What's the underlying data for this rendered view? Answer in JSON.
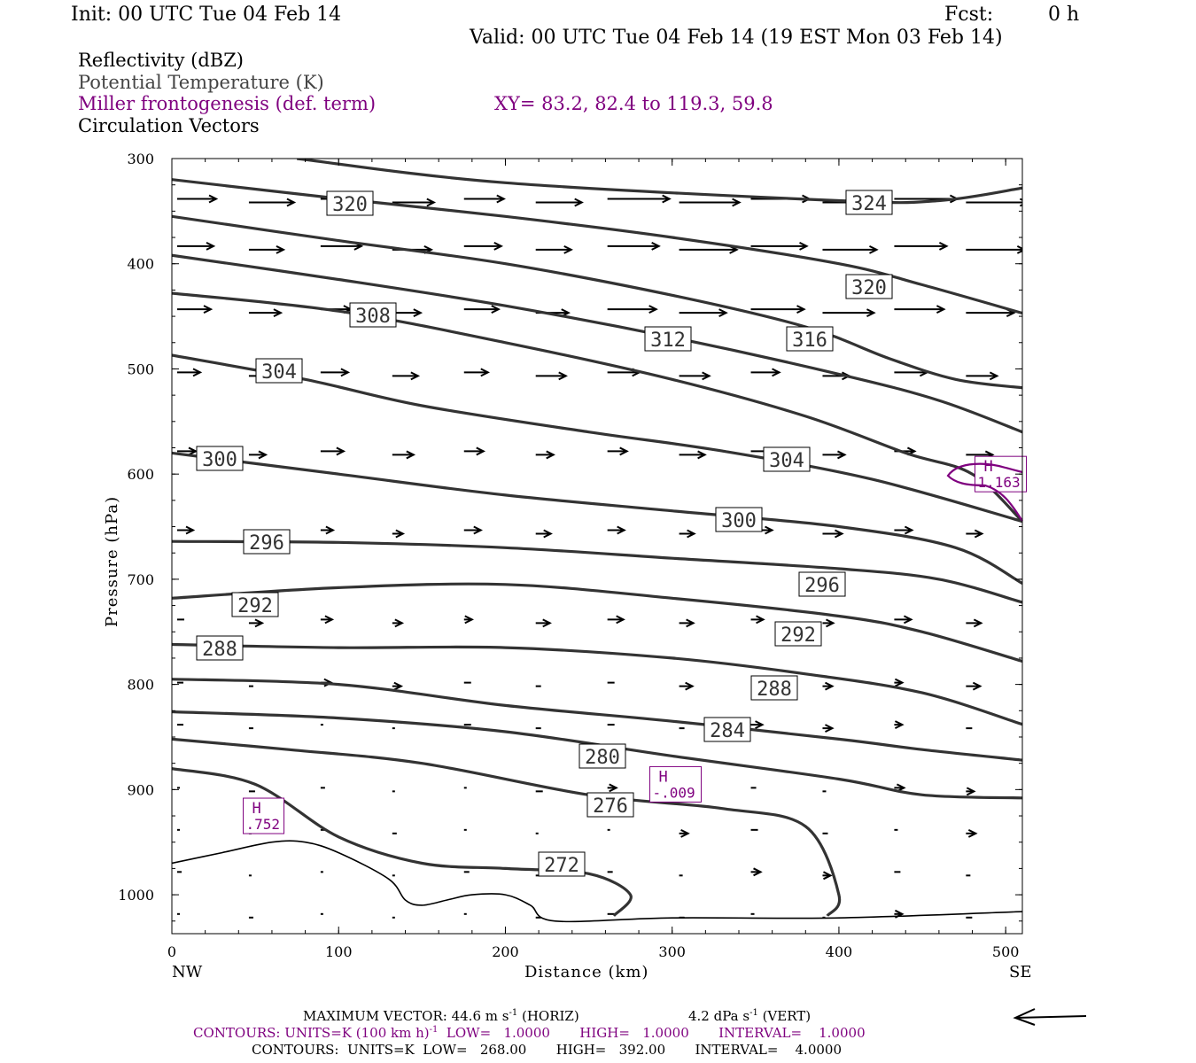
{
  "header": {
    "init": "Init: 00 UTC Tue 04 Feb 14",
    "fcst_label": "Fcst:",
    "fcst_value": "0 h",
    "valid": "Valid: 00 UTC Tue 04 Feb 14 (19 EST Mon 03 Feb 14)"
  },
  "legend": {
    "reflectivity": "Reflectivity (dBZ)",
    "potential_temperature": "Potential Temperature (K)",
    "miller": "Miller frontogenesis (def. term)",
    "xy": "XY=  83.2, 82.4 to 119.3, 59.8",
    "circulation": "Circulation Vectors"
  },
  "colors": {
    "theta_contour": "#333333",
    "frontogenesis": "#7f007f",
    "vectors": "#000000",
    "terrain": "#000000",
    "legend_gray": "#444444"
  },
  "chart_data": {
    "type": "line",
    "title": "",
    "xlabel": "Distance (km)",
    "ylabel": "Pressure (hPa)",
    "xlim": [
      0,
      510
    ],
    "ylim": [
      1037,
      300
    ],
    "x_ticks": [
      0,
      100,
      200,
      300,
      400,
      500
    ],
    "y_ticks": [
      300,
      400,
      500,
      600,
      700,
      800,
      900,
      1000
    ],
    "y_scale": "linear (reversed)",
    "x_end_labels": {
      "left": "NW",
      "right": "SE"
    },
    "grid": false,
    "contour_label_values": [
      "320",
      "324",
      "320",
      "308",
      "312",
      "316",
      "304",
      "300",
      "304",
      "300",
      "296",
      "296",
      "292",
      "292",
      "288",
      "288",
      "284",
      "280",
      "276",
      "272"
    ],
    "theta_contours": [
      {
        "name": "324",
        "points": [
          [
            75,
            300
          ],
          [
            200,
            323
          ],
          [
            400,
            340
          ],
          [
            460,
            340
          ],
          [
            510,
            328
          ]
        ]
      },
      {
        "name": "320",
        "points": [
          [
            0,
            320
          ],
          [
            100,
            338
          ],
          [
            200,
            355
          ],
          [
            300,
            375
          ],
          [
            400,
            400
          ],
          [
            450,
            420
          ],
          [
            510,
            447
          ]
        ]
      },
      {
        "name": "316",
        "points": [
          [
            0,
            355
          ],
          [
            100,
            378
          ],
          [
            200,
            400
          ],
          [
            300,
            430
          ],
          [
            380,
            460
          ],
          [
            430,
            490
          ],
          [
            470,
            510
          ],
          [
            510,
            518
          ]
        ]
      },
      {
        "name": "312",
        "points": [
          [
            0,
            392
          ],
          [
            100,
            415
          ],
          [
            200,
            440
          ],
          [
            300,
            470
          ],
          [
            400,
            505
          ],
          [
            460,
            530
          ],
          [
            510,
            560
          ]
        ]
      },
      {
        "name": "308",
        "points": [
          [
            0,
            428
          ],
          [
            100,
            445
          ],
          [
            200,
            475
          ],
          [
            300,
            510
          ],
          [
            380,
            545
          ],
          [
            440,
            580
          ],
          [
            480,
            600
          ],
          [
            510,
            645
          ]
        ]
      },
      {
        "name": "304",
        "points": [
          [
            0,
            487
          ],
          [
            80,
            510
          ],
          [
            150,
            535
          ],
          [
            250,
            560
          ],
          [
            330,
            578
          ],
          [
            420,
            605
          ],
          [
            510,
            645
          ]
        ]
      },
      {
        "name": "300",
        "points": [
          [
            0,
            580
          ],
          [
            100,
            600
          ],
          [
            200,
            620
          ],
          [
            300,
            635
          ],
          [
            400,
            650
          ],
          [
            470,
            670
          ],
          [
            510,
            704
          ]
        ]
      },
      {
        "name": "296",
        "points": [
          [
            0,
            664
          ],
          [
            100,
            665
          ],
          [
            200,
            670
          ],
          [
            300,
            680
          ],
          [
            400,
            690
          ],
          [
            460,
            700
          ],
          [
            510,
            722
          ]
        ]
      },
      {
        "name": "292",
        "points": [
          [
            0,
            718
          ],
          [
            100,
            708
          ],
          [
            200,
            705
          ],
          [
            300,
            718
          ],
          [
            400,
            735
          ],
          [
            450,
            750
          ],
          [
            510,
            778
          ]
        ]
      },
      {
        "name": "288",
        "points": [
          [
            0,
            762
          ],
          [
            100,
            765
          ],
          [
            200,
            765
          ],
          [
            300,
            775
          ],
          [
            380,
            790
          ],
          [
            450,
            808
          ],
          [
            510,
            838
          ]
        ]
      },
      {
        "name": "284",
        "points": [
          [
            0,
            795
          ],
          [
            100,
            800
          ],
          [
            200,
            820
          ],
          [
            300,
            835
          ],
          [
            400,
            852
          ],
          [
            450,
            862
          ],
          [
            510,
            872
          ]
        ]
      },
      {
        "name": "280",
        "points": [
          [
            0,
            826
          ],
          [
            100,
            832
          ],
          [
            200,
            845
          ],
          [
            300,
            868
          ],
          [
            400,
            890
          ],
          [
            450,
            905
          ],
          [
            510,
            908
          ]
        ]
      },
      {
        "name": "276",
        "points": [
          [
            0,
            852
          ],
          [
            70,
            862
          ],
          [
            150,
            875
          ],
          [
            250,
            905
          ],
          [
            330,
            918
          ],
          [
            380,
            935
          ],
          [
            400,
            1000
          ],
          [
            393,
            1020
          ]
        ]
      },
      {
        "name": "272",
        "points": [
          [
            0,
            880
          ],
          [
            50,
            895
          ],
          [
            100,
            945
          ],
          [
            150,
            970
          ],
          [
            200,
            975
          ],
          [
            250,
            980
          ],
          [
            275,
            1000
          ],
          [
            265,
            1020
          ]
        ]
      }
    ],
    "terrain": [
      [
        0,
        970
      ],
      [
        30,
        960
      ],
      [
        60,
        950
      ],
      [
        80,
        950
      ],
      [
        100,
        960
      ],
      [
        130,
        985
      ],
      [
        140,
        1005
      ],
      [
        150,
        1010
      ],
      [
        165,
        1005
      ],
      [
        180,
        1000
      ],
      [
        200,
        1000
      ],
      [
        215,
        1010
      ],
      [
        230,
        1025
      ],
      [
        300,
        1022
      ],
      [
        400,
        1022
      ],
      [
        510,
        1016
      ]
    ],
    "frontogenesis_maxima": [
      {
        "label": "H",
        "value": "1.163",
        "x": 497,
        "p": 600
      },
      {
        "label": "H",
        "value": "-.009",
        "x": 302,
        "p": 895
      },
      {
        "label": "H",
        "value": ".752",
        "x": 55,
        "p": 925
      }
    ],
    "circulation_vectors_note": "horizontal arrows, length ~ wind speed"
  },
  "footer": {
    "max_vector": "MAXIMUM VECTOR:  44.6 m s",
    "max_vector_exp": "-1",
    "max_vector_horiz": " (HORIZ)",
    "vert": "4.2 dPa s",
    "vert_exp": "-1",
    "vert_tail": " (VERT)",
    "contours1_a": "CONTOURS:  UNITS=K (100 km h)",
    "contours1_exp": "-1",
    "contours1_b": "  LOW=   1.0000       HIGH=   1.0000       INTERVAL=    1.0000",
    "contours2": "CONTOURS:  UNITS=K  LOW=   268.00       HIGH=   392.00       INTERVAL=    4.0000"
  }
}
